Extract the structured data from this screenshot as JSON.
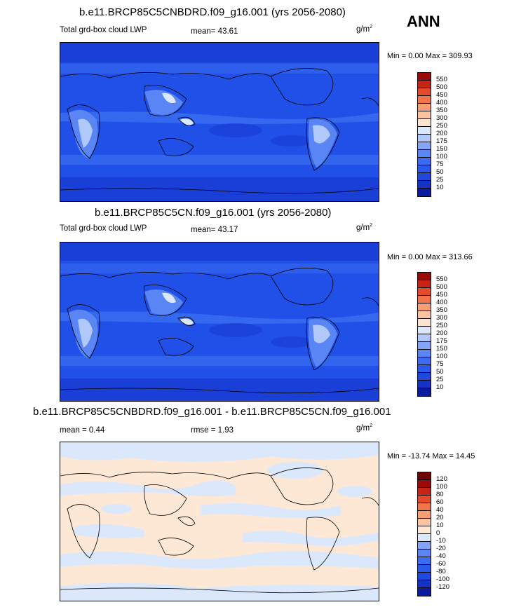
{
  "season": "ANN",
  "units_base": "g/m",
  "units_exp": "2",
  "colors": {
    "ocean_deep": "#1a3fd6",
    "ocean_mid": "#2150e8",
    "ocean_light": "#3a6ef0",
    "land_pale": "#c9dcfb",
    "diff_pos": "#fde8d6",
    "diff_neg": "#dbe8fb",
    "coast": "#000000"
  },
  "panels": [
    {
      "title": "b.e11.BRCP85C5CNBDRD.f09_g16.001 (yrs 2056-2080)",
      "left_label": "Total grd-box cloud LWP",
      "mid_label": "mean=  43.61",
      "minmax": "Min =   0.00 Max = 309.93"
    },
    {
      "title": "b.e11.BRCP85C5CN.f09_g16.001 (yrs 2056-2080)",
      "left_label": "Total grd-box cloud LWP",
      "mid_label": "mean=  43.17",
      "minmax": "Min =   0.00 Max = 313.66"
    },
    {
      "title": "b.e11.BRCP85C5CNBDRD.f09_g16.001 - b.e11.BRCP85C5CN.f09_g16.001",
      "left_label": "mean =   0.44",
      "mid_label": "rmse =   1.93",
      "minmax": "Min = -13.74 Max =  14.45"
    }
  ],
  "chart_data": [
    {
      "type": "heatmap",
      "title": "b.e11.BRCP85C5CNBDRD.f09_g16.001 (yrs 2056-2080)",
      "variable": "Total grd-box cloud LWP",
      "mean": 43.61,
      "min": 0.0,
      "max": 309.93,
      "colorbar_levels": [
        10,
        25,
        50,
        75,
        100,
        150,
        175,
        200,
        250,
        300,
        350,
        400,
        450,
        500,
        550
      ],
      "colorbar_colors": [
        "#0a1a9e",
        "#1432c4",
        "#1f48dc",
        "#2a5aec",
        "#3c6cf2",
        "#5a86f5",
        "#84a5f7",
        "#b0c8fa",
        "#dbe7fd",
        "#fde4d0",
        "#fbc3a0",
        "#f79e72",
        "#f2754a",
        "#e54a2a",
        "#c82414",
        "#9a0a08"
      ]
    },
    {
      "type": "heatmap",
      "title": "b.e11.BRCP85C5CN.f09_g16.001 (yrs 2056-2080)",
      "variable": "Total grd-box cloud LWP",
      "mean": 43.17,
      "min": 0.0,
      "max": 313.66,
      "colorbar_levels": [
        10,
        25,
        50,
        75,
        100,
        150,
        175,
        200,
        250,
        300,
        350,
        400,
        450,
        500,
        550
      ],
      "colorbar_colors": [
        "#0a1a9e",
        "#1432c4",
        "#1f48dc",
        "#2a5aec",
        "#3c6cf2",
        "#5a86f5",
        "#84a5f7",
        "#b0c8fa",
        "#dbe7fd",
        "#fde4d0",
        "#fbc3a0",
        "#f79e72",
        "#f2754a",
        "#e54a2a",
        "#c82414",
        "#9a0a08"
      ]
    },
    {
      "type": "heatmap",
      "title": "b.e11.BRCP85C5CNBDRD.f09_g16.001 - b.e11.BRCP85C5CN.f09_g16.001",
      "mean": 0.44,
      "rmse": 1.93,
      "min": -13.74,
      "max": 14.45,
      "colorbar_levels": [
        -120,
        -100,
        -80,
        -60,
        -40,
        -20,
        -10,
        0,
        10,
        20,
        40,
        60,
        80,
        100,
        120
      ],
      "colorbar_colors": [
        "#0a1a9e",
        "#1432c4",
        "#1f48dc",
        "#2a5aec",
        "#3c6cf2",
        "#5a86f5",
        "#84a5f7",
        "#dbe8fb",
        "#fde8d6",
        "#fbc3a0",
        "#f79e72",
        "#f2754a",
        "#e54a2a",
        "#c82414",
        "#9a0a08",
        "#6e0404"
      ]
    }
  ]
}
